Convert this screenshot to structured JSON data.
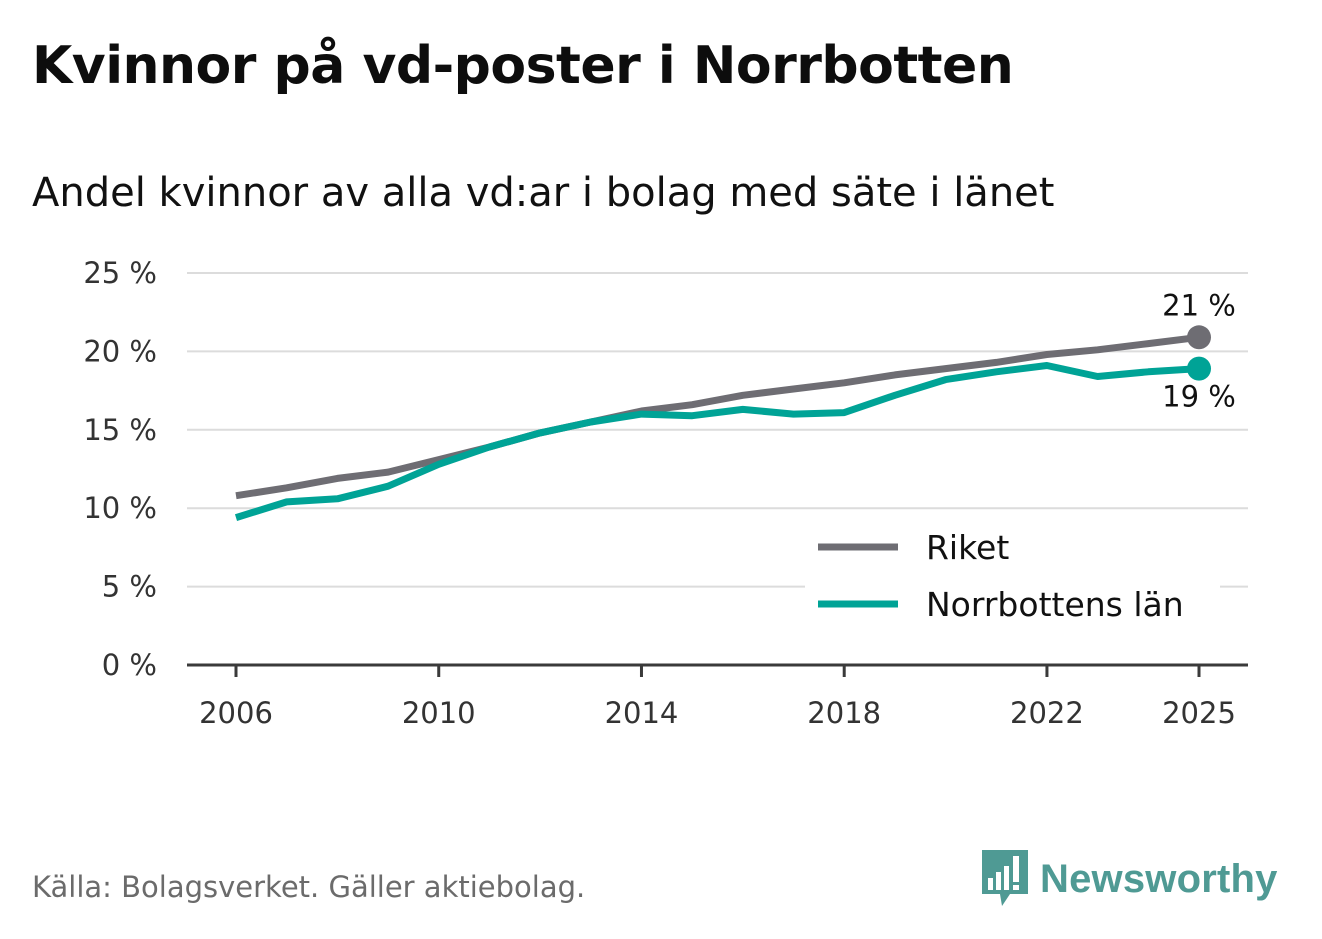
{
  "title": "Kvinnor på vd-poster i Norrbotten",
  "subtitle": "Andel kvinnor av alla vd:ar i bolag med säte i länet",
  "source": "Källa: Bolagsverket. Gäller aktiebolag.",
  "brand": {
    "name": "Newsworthy",
    "icon": "bar-chart-speech-icon",
    "color": "#4f9a94"
  },
  "chart_data": {
    "type": "line",
    "title": "Kvinnor på vd-poster i Norrbotten",
    "subtitle": "Andel kvinnor av alla vd:ar i bolag med säte i länet",
    "xlabel": "",
    "ylabel": "",
    "x": [
      2006,
      2007,
      2008,
      2009,
      2010,
      2011,
      2012,
      2013,
      2014,
      2015,
      2016,
      2017,
      2018,
      2019,
      2020,
      2021,
      2022,
      2023,
      2024,
      2025
    ],
    "xlim": [
      2005,
      2026
    ],
    "ylim": [
      0,
      25
    ],
    "x_ticks": [
      2006,
      2010,
      2014,
      2018,
      2022,
      2025
    ],
    "x_tick_labels": [
      "2006",
      "2010",
      "2014",
      "2018",
      "2022",
      "2025"
    ],
    "y_ticks": [
      0,
      5,
      10,
      15,
      20,
      25
    ],
    "y_tick_labels": [
      "0 %",
      "5 %",
      "10 %",
      "15 %",
      "20 %",
      "25 %"
    ],
    "grid": true,
    "legend_position": "bottom-right",
    "series": [
      {
        "name": "Riket",
        "color": "#6e6d73",
        "values": [
          10.8,
          11.3,
          11.9,
          12.3,
          13.1,
          13.9,
          14.8,
          15.5,
          16.2,
          16.6,
          17.2,
          17.6,
          18.0,
          18.5,
          18.9,
          19.3,
          19.8,
          20.1,
          20.5,
          20.9
        ],
        "end_label": "21 %"
      },
      {
        "name": "Norrbottens län",
        "color": "#00a396",
        "values": [
          9.4,
          10.4,
          10.6,
          11.4,
          12.8,
          13.9,
          14.8,
          15.5,
          16.0,
          15.9,
          16.3,
          16.0,
          16.1,
          17.2,
          18.2,
          18.7,
          19.1,
          18.4,
          18.7,
          18.9
        ],
        "end_label": "19 %"
      }
    ]
  }
}
